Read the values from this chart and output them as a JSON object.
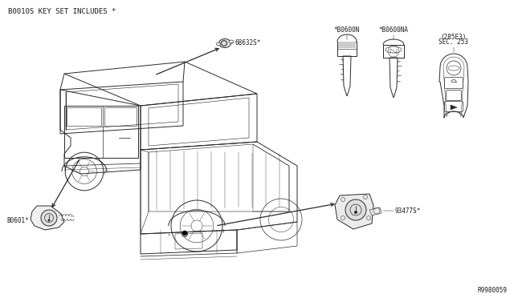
{
  "bg_color": "#ffffff",
  "line_color": "#2a2a2a",
  "text_color": "#1a1a1a",
  "header_text": "B0010S KEY SET INCLUDES *",
  "footer_text": "R9980059",
  "label_door_lock": "68632S*",
  "label_key_n": "*B0600N",
  "label_key_na": "*B0600NA",
  "label_sec1": "SEC. 253",
  "label_sec2": "(285E3)",
  "label_cyl_front": "B0601*",
  "label_cyl_rear": "93477S*",
  "font_size_header": 6.5,
  "font_size_label": 5.5,
  "font_size_footer": 5.5
}
